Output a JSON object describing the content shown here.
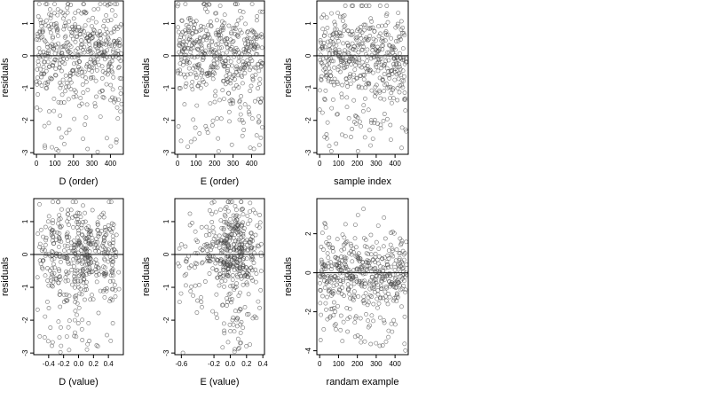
{
  "chart_data": [
    {
      "type": "scatter",
      "title": "",
      "xlabel": "D (order)",
      "ylabel": "residuals",
      "xlim": [
        -15,
        470
      ],
      "ylim": [
        -3.05,
        1.7
      ],
      "xticks": [
        0,
        100,
        200,
        300,
        400
      ],
      "yticks": [
        -3,
        -2,
        -1,
        0,
        1
      ],
      "zero_line": true,
      "grid": false,
      "point_style": "open-circle",
      "series": [
        {
          "n": 470,
          "x_range": [
            0,
            460
          ],
          "y_center": 0.05,
          "y_spread": 0.75,
          "y_min": -3.0,
          "y_max": 1.6,
          "pattern": "order",
          "seed": 11
        }
      ]
    },
    {
      "type": "scatter",
      "title": "",
      "xlabel": "E (order)",
      "ylabel": "residuals",
      "xlim": [
        -15,
        470
      ],
      "ylim": [
        -3.05,
        1.7
      ],
      "xticks": [
        0,
        100,
        200,
        300,
        400
      ],
      "yticks": [
        -3,
        -2,
        -1,
        0,
        1
      ],
      "zero_line": true,
      "grid": false,
      "point_style": "open-circle",
      "series": [
        {
          "n": 470,
          "x_range": [
            0,
            460
          ],
          "y_center": 0.05,
          "y_spread": 0.75,
          "y_min": -3.0,
          "y_max": 1.6,
          "pattern": "order",
          "seed": 23
        }
      ]
    },
    {
      "type": "scatter",
      "title": "",
      "xlabel": "sample index",
      "ylabel": "residuals",
      "xlim": [
        -15,
        470
      ],
      "ylim": [
        -3.05,
        1.7
      ],
      "xticks": [
        0,
        100,
        200,
        300,
        400
      ],
      "yticks": [
        -3,
        -2,
        -1,
        0,
        1
      ],
      "zero_line": true,
      "grid": false,
      "point_style": "open-circle",
      "series": [
        {
          "n": 470,
          "x_range": [
            0,
            460
          ],
          "y_center": 0.0,
          "y_spread": 0.7,
          "y_min": -3.0,
          "y_max": 1.55,
          "pattern": "sample",
          "seed": 37
        }
      ]
    },
    {
      "type": "scatter",
      "title": "",
      "xlabel": "D (value)",
      "ylabel": "residuals",
      "xlim": [
        -0.6,
        0.6
      ],
      "ylim": [
        -3.05,
        1.7
      ],
      "xticks": [
        -0.4,
        -0.2,
        0.0,
        0.2,
        0.4
      ],
      "xtick_labels": [
        "-0.4",
        "-0.2",
        "0.0",
        "0.2",
        "0.4"
      ],
      "yticks": [
        -3,
        -2,
        -1,
        0,
        1
      ],
      "zero_line": true,
      "grid": false,
      "point_style": "open-circle",
      "series": [
        {
          "n": 470,
          "x_range": [
            -0.55,
            0.55
          ],
          "y_center": 0.05,
          "y_spread": 0.75,
          "y_min": -3.0,
          "y_max": 1.6,
          "pattern": "d-value",
          "seed": 41
        }
      ]
    },
    {
      "type": "scatter",
      "title": "",
      "xlabel": "E (value)",
      "ylabel": "residuals",
      "xlim": [
        -0.68,
        0.42
      ],
      "ylim": [
        -3.05,
        1.7
      ],
      "xticks": [
        -0.6,
        -0.2,
        0.0,
        0.2,
        0.4
      ],
      "xtick_labels": [
        "-0.6",
        "-0.2",
        "0.0",
        "0.2",
        "0.4"
      ],
      "yticks": [
        -3,
        -2,
        -1,
        0,
        1
      ],
      "zero_line": true,
      "grid": false,
      "point_style": "open-circle",
      "series": [
        {
          "n": 470,
          "x_range": [
            -0.65,
            0.38
          ],
          "y_center": 0.05,
          "y_spread": 0.75,
          "y_min": -3.0,
          "y_max": 1.6,
          "pattern": "e-value",
          "seed": 53
        }
      ]
    },
    {
      "type": "scatter",
      "title": "",
      "xlabel": "randam example",
      "ylabel": "residuals",
      "xlim": [
        -15,
        470
      ],
      "ylim": [
        -4.2,
        3.8
      ],
      "xticks": [
        0,
        100,
        200,
        300,
        400
      ],
      "yticks": [
        -4,
        -2,
        0,
        2
      ],
      "zero_line": true,
      "grid": false,
      "point_style": "open-circle",
      "series": [
        {
          "n": 470,
          "x_range": [
            0,
            460
          ],
          "y_center": 0.0,
          "y_spread": 1.0,
          "y_min": -4.0,
          "y_max": 3.6,
          "pattern": "random",
          "seed": 67
        }
      ]
    }
  ]
}
